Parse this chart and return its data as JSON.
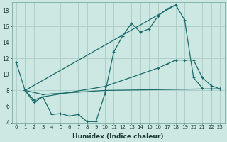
{
  "xlabel": "Humidex (Indice chaleur)",
  "bg_color": "#cde8e2",
  "grid_color": "#aaccc6",
  "line_color": "#1a6b6b",
  "xlim": [
    -0.5,
    23.5
  ],
  "ylim": [
    4,
    19
  ],
  "yticks": [
    4,
    6,
    8,
    10,
    12,
    14,
    16,
    18
  ],
  "line1": {
    "x": [
      0,
      1,
      2,
      3,
      4,
      5,
      6,
      7,
      8,
      9,
      10,
      11,
      12,
      13,
      14,
      15,
      16,
      17,
      18,
      19,
      20,
      21
    ],
    "y": [
      11.5,
      8.0,
      6.5,
      7.2,
      5.0,
      5.1,
      4.8,
      5.0,
      4.1,
      4.1,
      7.6,
      12.8,
      14.8,
      16.4,
      15.3,
      15.7,
      17.3,
      18.2,
      18.7,
      16.8,
      9.6,
      8.3
    ]
  },
  "line2": {
    "x": [
      1,
      18
    ],
    "y": [
      8.0,
      18.7
    ]
  },
  "line3": {
    "x": [
      1,
      2,
      3,
      10,
      16,
      17,
      18,
      19,
      20,
      21,
      22,
      23
    ],
    "y": [
      8.0,
      6.8,
      7.2,
      8.5,
      10.8,
      11.3,
      11.8,
      11.8,
      11.8,
      9.6,
      8.6,
      8.2
    ]
  },
  "line4": {
    "x": [
      1,
      3,
      10,
      22,
      23
    ],
    "y": [
      8.0,
      7.5,
      8.0,
      8.2,
      8.2
    ]
  }
}
